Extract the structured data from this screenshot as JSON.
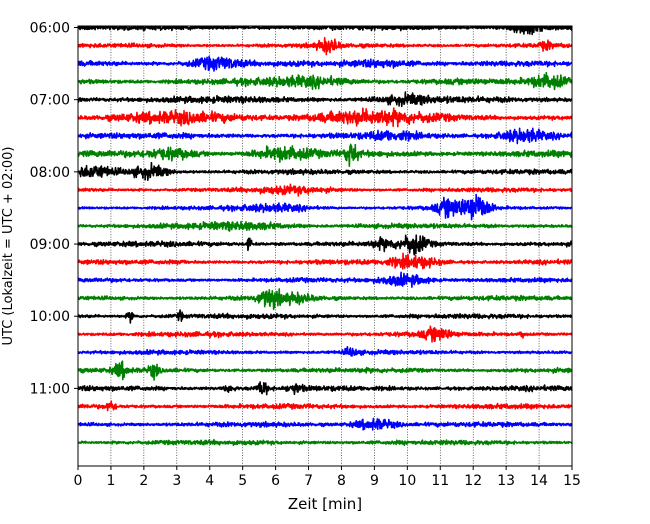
{
  "chart_data": {
    "type": "line",
    "chart_kind": "helicorder",
    "xlabel": "Zeit  [min]",
    "ylabel": "UTC (Lokalzeit = UTC + 02:00)",
    "xlim": [
      0,
      15
    ],
    "xticks": [
      "0",
      "1",
      "2",
      "3",
      "4",
      "5",
      "6",
      "7",
      "8",
      "9",
      "10",
      "11",
      "12",
      "13",
      "14",
      "15"
    ],
    "ylim_minutes_utc": [
      358.75,
      724.5
    ],
    "yticks": [
      "06:00",
      "07:00",
      "08:00",
      "09:00",
      "10:00",
      "11:00"
    ],
    "x_grid": true,
    "trace_interval_min": 15,
    "trace_count": 24,
    "trace_colors": [
      "#000000",
      "#ff0000",
      "#0000ff",
      "#008000"
    ],
    "traces": [
      {
        "start": "06:00",
        "color": "#000000",
        "noise": 0.22,
        "events": [
          {
            "t": 13.6,
            "amp": 0.55,
            "dur": 0.7
          }
        ]
      },
      {
        "start": "06:15",
        "color": "#ff0000",
        "noise": 0.18,
        "events": [
          {
            "t": 7.6,
            "amp": 0.6,
            "dur": 0.45
          },
          {
            "t": 14.2,
            "amp": 0.3,
            "dur": 0.3
          }
        ]
      },
      {
        "start": "06:30",
        "color": "#0000ff",
        "noise": 0.22,
        "events": [
          {
            "t": 4.2,
            "amp": 0.55,
            "dur": 1.1
          },
          {
            "t": 9.3,
            "amp": 0.3,
            "dur": 1.5
          }
        ]
      },
      {
        "start": "06:45",
        "color": "#008000",
        "noise": 0.25,
        "events": [
          {
            "t": 7.0,
            "amp": 0.35,
            "dur": 2.0
          },
          {
            "t": 14.3,
            "amp": 0.6,
            "dur": 0.8
          }
        ]
      },
      {
        "start": "07:00",
        "color": "#000000",
        "noise": 0.28,
        "events": [
          {
            "t": 10.0,
            "amp": 0.3,
            "dur": 1.0
          }
        ]
      },
      {
        "start": "07:15",
        "color": "#ff0000",
        "noise": 0.28,
        "events": [
          {
            "t": 8.8,
            "amp": 0.55,
            "dur": 2.5
          },
          {
            "t": 3.0,
            "amp": 0.35,
            "dur": 2.5
          }
        ]
      },
      {
        "start": "07:30",
        "color": "#0000ff",
        "noise": 0.25,
        "events": [
          {
            "t": 13.5,
            "amp": 0.6,
            "dur": 1.0
          },
          {
            "t": 9.5,
            "amp": 0.3,
            "dur": 1.0
          }
        ]
      },
      {
        "start": "07:45",
        "color": "#008000",
        "noise": 0.28,
        "events": [
          {
            "t": 8.3,
            "amp": 1.05,
            "dur": 0.25
          },
          {
            "t": 6.2,
            "amp": 0.5,
            "dur": 1.2
          },
          {
            "t": 2.8,
            "amp": 0.4,
            "dur": 1.0
          }
        ]
      },
      {
        "start": "08:00",
        "color": "#000000",
        "noise": 0.2,
        "events": [
          {
            "t": 0.5,
            "amp": 0.5,
            "dur": 0.9
          },
          {
            "t": 2.2,
            "amp": 0.55,
            "dur": 0.8
          }
        ]
      },
      {
        "start": "08:15",
        "color": "#ff0000",
        "noise": 0.18,
        "events": [
          {
            "t": 6.5,
            "amp": 0.25,
            "dur": 1.5
          }
        ]
      },
      {
        "start": "08:30",
        "color": "#0000ff",
        "noise": 0.16,
        "events": [
          {
            "t": 11.3,
            "amp": 0.8,
            "dur": 0.6
          },
          {
            "t": 12.1,
            "amp": 1.3,
            "dur": 0.55
          },
          {
            "t": 6.0,
            "amp": 0.3,
            "dur": 1.5
          }
        ]
      },
      {
        "start": "08:45",
        "color": "#008000",
        "noise": 0.2,
        "events": [
          {
            "t": 5.0,
            "amp": 0.25,
            "dur": 2.0
          }
        ]
      },
      {
        "start": "09:00",
        "color": "#000000",
        "noise": 0.22,
        "events": [
          {
            "t": 10.2,
            "amp": 0.85,
            "dur": 0.55
          },
          {
            "t": 5.2,
            "amp": 0.6,
            "dur": 0.1
          },
          {
            "t": 9.3,
            "amp": 0.35,
            "dur": 0.5
          }
        ]
      },
      {
        "start": "09:15",
        "color": "#ff0000",
        "noise": 0.2,
        "events": [
          {
            "t": 10.2,
            "amp": 0.5,
            "dur": 1.1
          },
          {
            "t": 3.2,
            "amp": 0.3,
            "dur": 0.1
          }
        ]
      },
      {
        "start": "09:30",
        "color": "#0000ff",
        "noise": 0.18,
        "events": [
          {
            "t": 9.9,
            "amp": 0.5,
            "dur": 1.1
          }
        ]
      },
      {
        "start": "09:45",
        "color": "#008000",
        "noise": 0.2,
        "events": [
          {
            "t": 5.8,
            "amp": 0.75,
            "dur": 0.5
          },
          {
            "t": 6.6,
            "amp": 0.35,
            "dur": 0.8
          }
        ]
      },
      {
        "start": "10:00",
        "color": "#000000",
        "noise": 0.2,
        "events": [
          {
            "t": 1.6,
            "amp": 0.45,
            "dur": 0.15
          },
          {
            "t": 3.1,
            "amp": 0.45,
            "dur": 0.1
          }
        ]
      },
      {
        "start": "10:15",
        "color": "#ff0000",
        "noise": 0.2,
        "events": [
          {
            "t": 10.9,
            "amp": 0.5,
            "dur": 0.6
          },
          {
            "t": 13.5,
            "amp": 0.4,
            "dur": 0.1
          }
        ]
      },
      {
        "start": "10:30",
        "color": "#0000ff",
        "noise": 0.18,
        "events": [
          {
            "t": 8.3,
            "amp": 0.35,
            "dur": 0.3
          }
        ]
      },
      {
        "start": "10:45",
        "color": "#008000",
        "noise": 0.2,
        "events": [
          {
            "t": 1.3,
            "amp": 0.65,
            "dur": 0.3
          },
          {
            "t": 2.3,
            "amp": 0.6,
            "dur": 0.2
          }
        ]
      },
      {
        "start": "11:00",
        "color": "#000000",
        "noise": 0.22,
        "events": [
          {
            "t": 5.6,
            "amp": 0.7,
            "dur": 0.2
          },
          {
            "t": 4.6,
            "amp": 0.35,
            "dur": 0.2
          },
          {
            "t": 6.6,
            "amp": 0.35,
            "dur": 0.3
          }
        ]
      },
      {
        "start": "11:15",
        "color": "#ff0000",
        "noise": 0.2,
        "events": [
          {
            "t": 1.0,
            "amp": 0.5,
            "dur": 0.2
          }
        ]
      },
      {
        "start": "11:30",
        "color": "#0000ff",
        "noise": 0.2,
        "events": [
          {
            "t": 9.0,
            "amp": 0.5,
            "dur": 0.9
          }
        ]
      },
      {
        "start": "11:45",
        "color": "#008000",
        "noise": 0.2,
        "events": []
      }
    ]
  }
}
